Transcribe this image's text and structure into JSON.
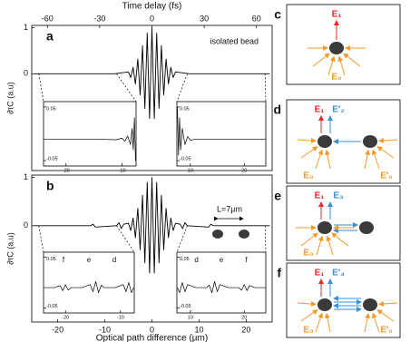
{
  "chart_data": [
    {
      "type": "line",
      "panel_label": "a",
      "note": "isolated bead",
      "ylabel": "∂τC (a.u)",
      "x2label": "Time delay (fs)",
      "x2lim": [
        -69,
        69
      ],
      "x2ticks": [
        -60,
        -30,
        0,
        30,
        60
      ],
      "xlim": [
        -25.5,
        25.5
      ],
      "ylim": [
        -2.1,
        1.05
      ],
      "yticks": [
        0,
        1
      ],
      "color": "#000000",
      "x": [
        -25,
        -15,
        -8,
        -5,
        -4.5,
        -4,
        -3.5,
        -3,
        -2.5,
        -2,
        -1.5,
        -1,
        -0.5,
        0,
        0.5,
        1,
        1.5,
        2,
        2.5,
        3,
        3.5,
        4,
        4.5,
        5,
        8,
        15,
        25
      ],
      "values": [
        0,
        0,
        0,
        0.04,
        -0.08,
        0.14,
        -0.22,
        0.32,
        -0.46,
        0.61,
        -0.75,
        0.88,
        -0.97,
        1.0,
        -0.97,
        0.88,
        -0.75,
        0.61,
        -0.46,
        0.32,
        -0.22,
        0.14,
        -0.08,
        0.04,
        0,
        0,
        0
      ]
    },
    {
      "type": "line",
      "panel_label": "b",
      "note": "L=7µm",
      "ylabel": "∂τC (a.u)",
      "xlabel": "Optical path difference (µm)",
      "xlim": [
        -25.5,
        25.5
      ],
      "xticks": [
        -20,
        -10,
        0,
        10,
        20
      ],
      "ylim": [
        -2.0,
        1.05
      ],
      "yticks": [
        0,
        1
      ],
      "color": "#000000",
      "x": [
        -25,
        -13,
        -12.5,
        -12,
        -7.5,
        -7,
        -6.5,
        -6,
        -5,
        -4.5,
        -4,
        -3.5,
        -3,
        -2.5,
        -2,
        -1.5,
        -1,
        -0.5,
        0,
        0.5,
        1,
        1.5,
        2,
        2.5,
        3,
        3.5,
        4,
        4.5,
        5,
        6,
        6.5,
        7,
        7.5,
        12,
        12.5,
        13,
        25
      ],
      "values": [
        0,
        0,
        0.03,
        -0.03,
        0,
        0.06,
        -0.06,
        0.03,
        0.05,
        -0.1,
        0.16,
        -0.25,
        0.36,
        -0.5,
        0.63,
        -0.77,
        0.9,
        -0.98,
        1.0,
        -0.98,
        0.9,
        -0.77,
        0.63,
        -0.5,
        0.36,
        -0.25,
        0.16,
        -0.1,
        0.05,
        0.03,
        -0.06,
        0.06,
        0,
        -0.03,
        0.03,
        0,
        0
      ]
    },
    {
      "type": "line",
      "xlim": [
        -24,
        -7.5
      ],
      "xticks": [
        -20,
        -10
      ],
      "ylim": [
        -0.06,
        0.06
      ],
      "yticks": [
        0.05,
        -0.05
      ],
      "color": "#000000",
      "x": [
        -24,
        -20,
        -15,
        -11,
        -10,
        -9.5,
        -9,
        -8.5,
        -8.2,
        -8,
        -7.8,
        -7.6
      ],
      "values": [
        -0.01,
        -0.01,
        -0.01,
        -0.011,
        -0.008,
        -0.014,
        -0.004,
        -0.02,
        0.01,
        -0.03,
        0.03,
        -0.05
      ]
    },
    {
      "type": "line",
      "xlim": [
        7.5,
        24
      ],
      "xticks": [
        10,
        20
      ],
      "ylim": [
        -0.06,
        0.06
      ],
      "yticks": [
        0.05,
        -0.05
      ],
      "color": "#000000",
      "x": [
        7.6,
        7.8,
        8,
        8.2,
        8.5,
        9,
        9.5,
        10,
        11,
        15,
        20,
        24
      ],
      "values": [
        0.05,
        -0.04,
        0.03,
        -0.03,
        0.01,
        -0.02,
        -0.005,
        -0.012,
        -0.01,
        -0.01,
        -0.01,
        -0.01
      ]
    },
    {
      "type": "line",
      "labels": [
        "f",
        "e",
        "d"
      ],
      "xlim": [
        -24,
        -7.5
      ],
      "xticks": [
        -20,
        -10
      ],
      "ylim": [
        -0.06,
        0.06
      ],
      "yticks": [
        0.05,
        -0.05
      ],
      "color": "#000000",
      "x": [
        -24,
        -22,
        -21,
        -20.5,
        -20,
        -19.5,
        -19,
        -17,
        -15.5,
        -15,
        -14.5,
        -14,
        -13.5,
        -13,
        -11,
        -9.5,
        -9,
        -8.5,
        -8,
        -7.6
      ],
      "values": [
        -0.01,
        -0.01,
        -0.006,
        -0.016,
        -0.004,
        -0.015,
        -0.01,
        -0.01,
        -0.004,
        -0.018,
        0.002,
        -0.02,
        -0.005,
        -0.01,
        -0.01,
        -0.004,
        -0.018,
        0.0,
        -0.02,
        -0.01
      ]
    },
    {
      "type": "line",
      "labels": [
        "d",
        "e",
        "f"
      ],
      "xlim": [
        7.5,
        24
      ],
      "xticks": [
        10,
        20
      ],
      "ylim": [
        -0.06,
        0.06
      ],
      "yticks": [
        0.05,
        -0.05
      ],
      "color": "#000000",
      "x": [
        7.6,
        8,
        8.5,
        9,
        9.5,
        11,
        13,
        13.5,
        14,
        14.5,
        15,
        15.5,
        17,
        19,
        19.5,
        20,
        20.5,
        21,
        22,
        24
      ],
      "values": [
        -0.01,
        -0.02,
        0.0,
        -0.018,
        -0.004,
        -0.01,
        -0.01,
        -0.005,
        -0.02,
        0.002,
        -0.018,
        -0.004,
        -0.01,
        -0.01,
        -0.015,
        -0.004,
        -0.016,
        -0.006,
        -0.01,
        -0.01
      ]
    }
  ],
  "schematics": [
    {
      "label": "c",
      "fields": [
        "E₁",
        "E₀"
      ]
    },
    {
      "label": "d",
      "fields": [
        "E₁",
        "E′₂",
        "E₀",
        "E′₀"
      ]
    },
    {
      "label": "e",
      "fields": [
        "E₁",
        "E₃",
        "E₀"
      ]
    },
    {
      "label": "f",
      "fields": [
        "E₁",
        "E′₄",
        "E₀",
        "E′₀"
      ]
    }
  ]
}
